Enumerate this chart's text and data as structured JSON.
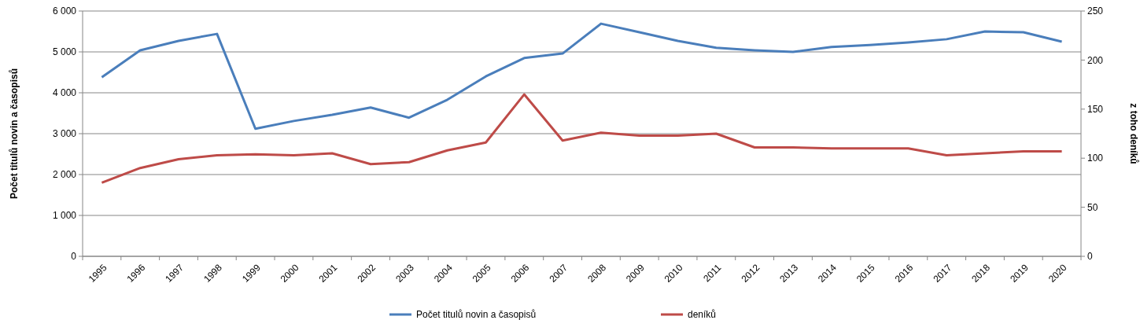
{
  "chart_data": {
    "type": "line",
    "ylabel": "Počet titulů novin a časopisů",
    "y2label": "z toho deníků",
    "categories": [
      "1995",
      "1996",
      "1997",
      "1998",
      "1999",
      "2000",
      "2001",
      "2002",
      "2003",
      "2004",
      "2005",
      "2006",
      "2007",
      "2008",
      "2009",
      "2010",
      "2011",
      "2012",
      "2013",
      "2014",
      "2015",
      "2016",
      "2017",
      "2018",
      "2019",
      "2020"
    ],
    "ylim": [
      0,
      6000
    ],
    "yticks": [
      0,
      {
        "value": 1000,
        "label": "1 000"
      },
      {
        "value": 2000,
        "label": "2 000"
      },
      {
        "value": 3000,
        "label": "3 000"
      },
      {
        "value": 4000,
        "label": "4 000"
      },
      {
        "value": 5000,
        "label": "5 000"
      },
      {
        "value": 6000,
        "label": "6 000"
      }
    ],
    "y2lim": [
      0,
      250
    ],
    "y2ticks": [
      0,
      50,
      100,
      150,
      200,
      250
    ],
    "grid": "y",
    "legend": "bottom",
    "marker": "none",
    "line_style": "solid",
    "series": [
      {
        "name": "Počet titulů novin a časopisů",
        "color": "#4a7ebb",
        "values": [
          4380,
          5040,
          5270,
          5440,
          3120,
          3310,
          3460,
          3640,
          3390,
          3830,
          4400,
          4850,
          4960,
          5690,
          5480,
          5270,
          5100,
          5040,
          5000,
          5120,
          5170,
          5230,
          5310,
          5500,
          5480,
          5250
        ]
      },
      {
        "name": "deníků",
        "color": "#be4b48",
        "axis": "y2",
        "values": [
          75,
          90,
          99,
          103,
          104,
          103,
          105,
          94,
          96,
          108,
          116,
          165,
          118,
          126,
          123,
          123,
          125,
          111,
          111,
          110,
          110,
          110,
          103,
          105,
          107,
          107
        ]
      }
    ]
  }
}
